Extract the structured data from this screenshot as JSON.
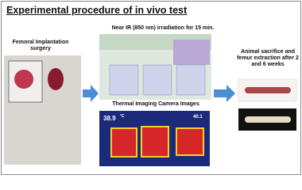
{
  "title": "Experimental procedure of in vivo test",
  "steps": [
    "Femoral Implantation surgery",
    "Near IR (850 nm) irradiation for 15 min.",
    "Thermal Imaging Camera Images",
    "Animal sacrifice and femur extraction after 2 and 6 weeks"
  ],
  "thermal": {
    "left_reading": "38.9",
    "left_unit": "°C",
    "right_reading": "40.1"
  }
}
